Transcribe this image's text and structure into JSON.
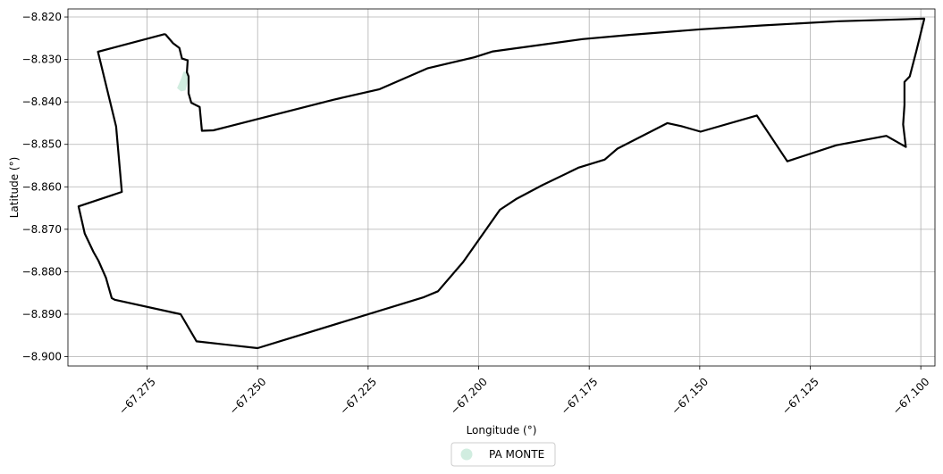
{
  "chart_data": {
    "type": "map",
    "title": "",
    "xlabel": "Longitude (°)",
    "ylabel": "Latitude (°)",
    "xlim": [
      -67.2929,
      -67.0968
    ],
    "ylim": [
      -8.9022,
      -8.8181
    ],
    "x_ticks": [
      -67.275,
      -67.25,
      -67.225,
      -67.2,
      -67.175,
      -67.15,
      -67.125,
      -67.1
    ],
    "x_tick_labels": [
      "−67.275",
      "−67.250",
      "−67.225",
      "−67.200",
      "−67.175",
      "−67.150",
      "−67.125",
      "−67.100"
    ],
    "y_ticks": [
      -8.82,
      -8.83,
      -8.84,
      -8.85,
      -8.86,
      -8.87,
      -8.88,
      -8.89,
      -8.9
    ],
    "y_tick_labels": [
      "−8.820",
      "−8.830",
      "−8.840",
      "−8.850",
      "−8.860",
      "−8.870",
      "−8.880",
      "−8.890",
      "−8.900"
    ],
    "grid": true,
    "legend": {
      "placement": "bottom-center",
      "entries": [
        {
          "label": "PA MONTE",
          "color": "#d1ede0"
        }
      ]
    },
    "boundary": {
      "color": "#000000",
      "points": [
        [
          -67.2709,
          -8.824
        ],
        [
          -67.2691,
          -8.8262
        ],
        [
          -67.2677,
          -8.8273
        ],
        [
          -67.2671,
          -8.8298
        ],
        [
          -67.2658,
          -8.8302
        ],
        [
          -67.266,
          -8.833
        ],
        [
          -67.2656,
          -8.834
        ],
        [
          -67.2656,
          -8.838
        ],
        [
          -67.265,
          -8.8402
        ],
        [
          -67.2631,
          -8.8412
        ],
        [
          -67.2626,
          -8.8468
        ],
        [
          -67.26,
          -8.8467
        ],
        [
          -67.2329,
          -8.8395
        ],
        [
          -67.2224,
          -8.837
        ],
        [
          -67.2116,
          -8.8321
        ],
        [
          -67.201,
          -8.8295
        ],
        [
          -67.1968,
          -8.8281
        ],
        [
          -67.1765,
          -8.8252
        ],
        [
          -67.1656,
          -8.8242
        ],
        [
          -67.1497,
          -8.8229
        ],
        [
          -67.1359,
          -8.822
        ],
        [
          -67.1186,
          -8.821
        ],
        [
          -67.0992,
          -8.8204
        ],
        [
          -67.101,
          -8.828
        ],
        [
          -67.1025,
          -8.834
        ],
        [
          -67.1037,
          -8.8353
        ],
        [
          -67.1037,
          -8.8407
        ],
        [
          -67.104,
          -8.8453
        ],
        [
          -67.1034,
          -8.8506
        ],
        [
          -67.1078,
          -8.848
        ],
        [
          -67.1191,
          -8.8502
        ],
        [
          -67.1302,
          -8.854
        ],
        [
          -67.1371,
          -8.8432
        ],
        [
          -67.1498,
          -8.847
        ],
        [
          -67.1542,
          -8.8457
        ],
        [
          -67.1573,
          -8.845
        ],
        [
          -67.1686,
          -8.851
        ],
        [
          -67.1715,
          -8.8536
        ],
        [
          -67.1775,
          -8.8555
        ],
        [
          -67.1778,
          -8.8557
        ],
        [
          -67.1856,
          -8.8596
        ],
        [
          -67.1914,
          -8.8628
        ],
        [
          -67.1952,
          -8.8654
        ],
        [
          -67.2035,
          -8.8777
        ],
        [
          -67.2092,
          -8.8846
        ],
        [
          -67.2124,
          -8.886
        ],
        [
          -67.25,
          -8.898
        ],
        [
          -67.2638,
          -8.8964
        ],
        [
          -67.2674,
          -8.89
        ],
        [
          -67.2823,
          -8.8866
        ],
        [
          -67.283,
          -8.8862
        ],
        [
          -67.2843,
          -8.8814
        ],
        [
          -67.286,
          -8.8774
        ],
        [
          -67.2871,
          -8.8754
        ],
        [
          -67.2891,
          -8.871
        ],
        [
          -67.2905,
          -8.8646
        ],
        [
          -67.2807,
          -8.8612
        ],
        [
          -67.282,
          -8.8458
        ],
        [
          -67.2861,
          -8.8282
        ],
        [
          -67.2709,
          -8.824
        ]
      ]
    },
    "parcels": [
      {
        "name": "PA MONTE",
        "color": "#d1ede0",
        "points": [
          [
            -67.2667,
            -8.833
          ],
          [
            -67.2658,
            -8.833
          ],
          [
            -67.266,
            -8.8355
          ],
          [
            -67.2664,
            -8.8372
          ],
          [
            -67.2673,
            -8.8374
          ],
          [
            -67.2681,
            -8.8367
          ],
          [
            -67.2678,
            -8.836
          ],
          [
            -67.2672,
            -8.8346
          ],
          [
            -67.2667,
            -8.833
          ]
        ]
      }
    ]
  }
}
